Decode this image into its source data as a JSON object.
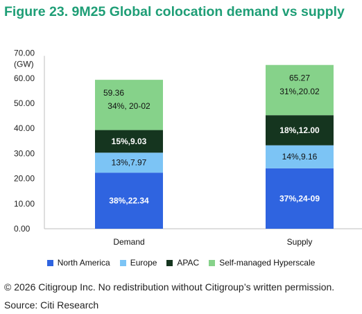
{
  "title": "Figure 23. 9M25 Global colocation demand vs supply",
  "footer": {
    "copyright": "© 2026 Citigroup Inc. No redistribution without Citigroup’s written permission.",
    "source": "Source: Citi Research"
  },
  "chart_data": {
    "type": "bar",
    "stacked": true,
    "categories": [
      "Demand",
      "Supply"
    ],
    "ylabel": "(GW)",
    "ylim": [
      0,
      70
    ],
    "yticks": [
      "0.00",
      "10.00",
      "20.00",
      "30.00",
      "40.00",
      "50.00",
      "60.00",
      "70.00"
    ],
    "grid": false,
    "legend_position": "bottom",
    "series": [
      {
        "name": "North America",
        "color": "#2f64e0",
        "values": [
          22.34,
          24.09
        ],
        "labels": [
          "38%,22.34",
          "37%,24-09"
        ],
        "label_color": "#ffffff"
      },
      {
        "name": "Europe",
        "color": "#7cc4f5",
        "values": [
          7.97,
          9.16
        ],
        "labels": [
          "13%,7.97",
          "14%,9.16"
        ],
        "label_color": "#111111"
      },
      {
        "name": "APAC",
        "color": "#15351f",
        "values": [
          9.03,
          12.0
        ],
        "labels": [
          "15%,9.03",
          "18%,12.00"
        ],
        "label_color": "#ffffff"
      },
      {
        "name": "Self-managed Hyperscale",
        "color": "#86d28a",
        "values": [
          20.02,
          20.02
        ],
        "labels": [
          "34%, 20-02",
          "31%,20.02"
        ],
        "label_color": "#111111"
      }
    ],
    "totals": [
      "59.36",
      "65.27"
    ]
  }
}
